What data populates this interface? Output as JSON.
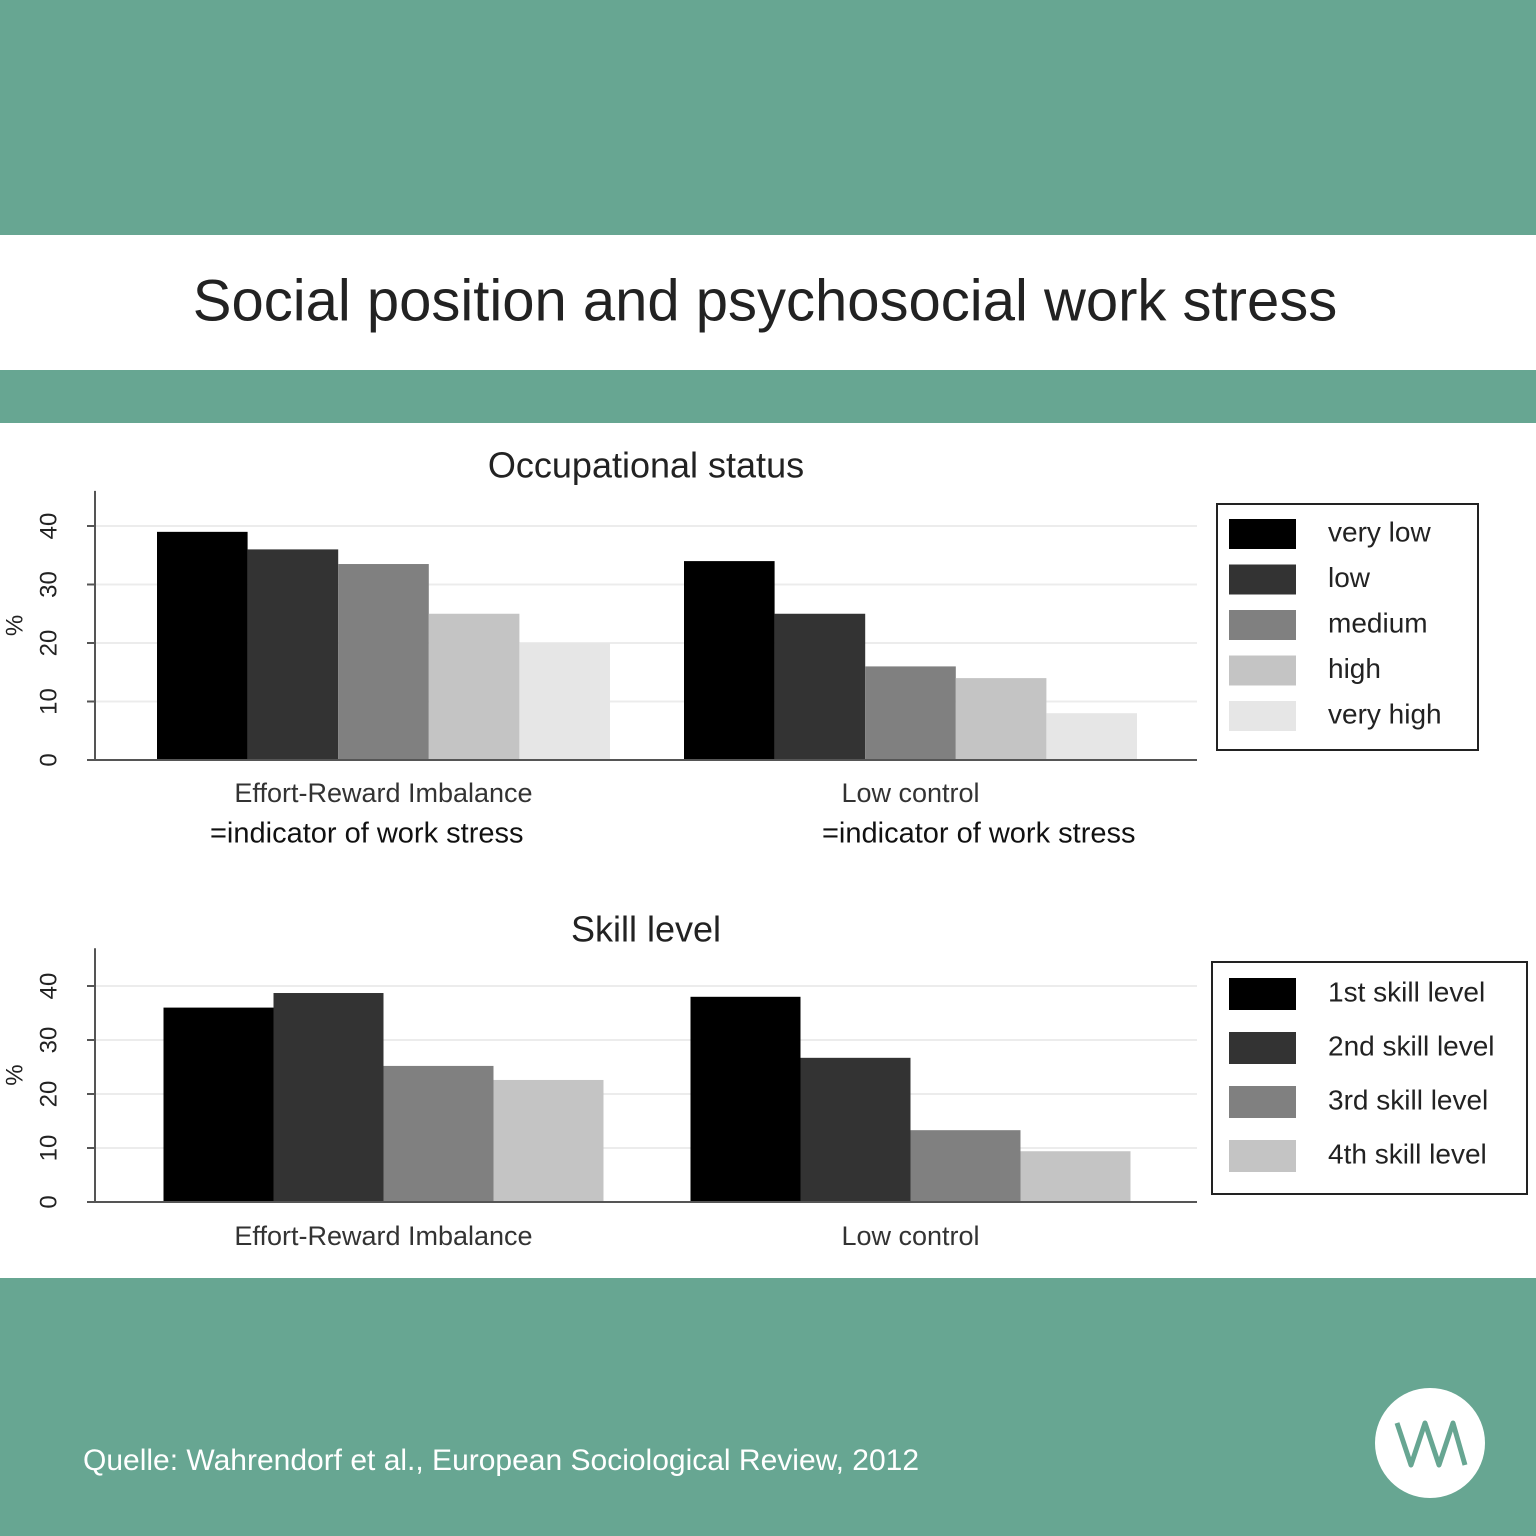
{
  "header": {
    "title": "Social position and psychosocial work stress"
  },
  "chart_data": [
    {
      "type": "bar",
      "title": "Occupational status",
      "ylabel": "%",
      "categories": [
        "Effort-Reward Imbalance",
        "Low control"
      ],
      "category_notes": [
        "=indicator of work stress",
        "=indicator of work stress"
      ],
      "series": [
        {
          "name": "very low",
          "color": "#000000",
          "values": [
            39,
            34
          ]
        },
        {
          "name": "low",
          "color": "#333333",
          "values": [
            36,
            25
          ]
        },
        {
          "name": "medium",
          "color": "#808080",
          "values": [
            33.5,
            16
          ]
        },
        {
          "name": "high",
          "color": "#c4c4c4",
          "values": [
            25,
            14
          ]
        },
        {
          "name": "very high",
          "color": "#e6e6e6",
          "values": [
            20,
            8
          ]
        }
      ],
      "ylim": [
        0,
        46
      ],
      "yticks": [
        0,
        10,
        20,
        30,
        40
      ],
      "grid": true
    },
    {
      "type": "bar",
      "title": "Skill level",
      "ylabel": "%",
      "categories": [
        "Effort-Reward Imbalance",
        "Low control"
      ],
      "series": [
        {
          "name": "1st skill level",
          "color": "#000000",
          "values": [
            36,
            38
          ]
        },
        {
          "name": "2nd skill level",
          "color": "#333333",
          "values": [
            38.7,
            26.7
          ]
        },
        {
          "name": "3rd skill level",
          "color": "#808080",
          "values": [
            25.2,
            13.3
          ]
        },
        {
          "name": "4th skill level",
          "color": "#c4c4c4",
          "values": [
            22.6,
            9.4
          ]
        }
      ],
      "ylim": [
        0,
        47
      ],
      "yticks": [
        0,
        10,
        20,
        30,
        40
      ],
      "grid": true
    }
  ],
  "footer": {
    "source": "Quelle: Wahrendorf et al., European Sociological Review, 2012"
  }
}
